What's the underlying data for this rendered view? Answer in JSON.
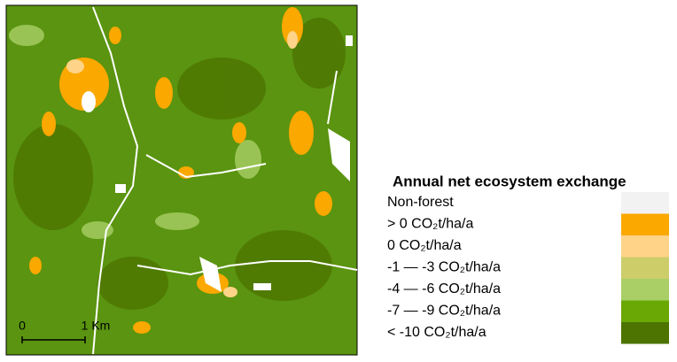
{
  "legend": {
    "title": "Annual net ecosystem exchange",
    "items": [
      {
        "label": "Non-forest",
        "color": "#f2f2f2"
      },
      {
        "label": "> 0 CO₂t/ha/a",
        "color": "#fba800"
      },
      {
        "label": "0 CO₂t/ha/a",
        "color": "#ffd488"
      },
      {
        "label": "-1 — -3 CO₂t/ha/a",
        "color": "#cdcd6a"
      },
      {
        "label": "-4 — -6 CO₂t/ha/a",
        "color": "#a9cf66"
      },
      {
        "label": "-7 — -9 CO₂t/ha/a",
        "color": "#6aa806"
      },
      {
        "label": "< -10 CO₂t/ha/a",
        "color": "#4d7400"
      }
    ]
  },
  "scale_bar": {
    "labels": [
      "0",
      "1 Km"
    ]
  }
}
